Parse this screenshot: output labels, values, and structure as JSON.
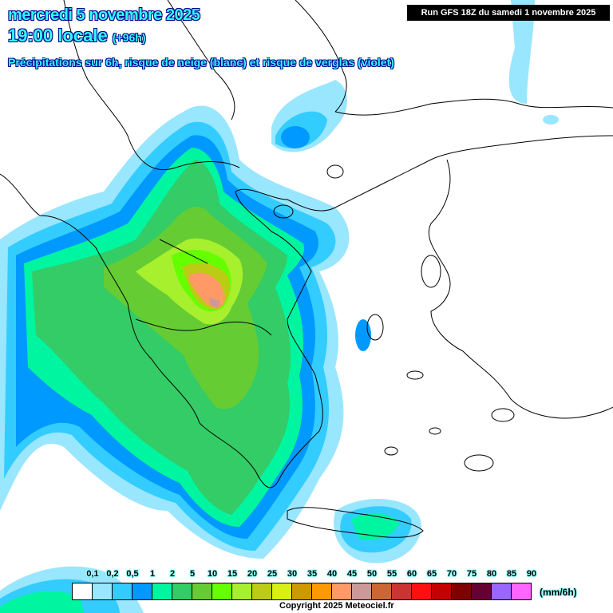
{
  "header": {
    "date": "mercredi 5 novembre 2025",
    "time": "19:00 locale",
    "lead": "(+96h)",
    "subtitle": "Précipitations sur 6h, risque de neige (blanc) et risque de verglas (violet)",
    "run": "Run GFS 18Z du samedi 1 novembre 2025"
  },
  "legend": {
    "unit": "(mm/6h)",
    "labels": [
      "0,1",
      "0,2",
      "0,5",
      "1",
      "2",
      "5",
      "10",
      "15",
      "20",
      "25",
      "30",
      "35",
      "40",
      "45",
      "50",
      "55",
      "60",
      "65",
      "70",
      "75",
      "80",
      "85",
      "90"
    ],
    "colors": [
      "#ffffff",
      "#99e6ff",
      "#33ccff",
      "#0099ff",
      "#00f5a0",
      "#33cc66",
      "#66cc33",
      "#66ff00",
      "#a6f02e",
      "#bccc14",
      "#d9f014",
      "#cc9900",
      "#ff9900",
      "#ff9966",
      "#cc9999",
      "#cc6633",
      "#cc3333",
      "#ff0f0f",
      "#c40000",
      "#800000",
      "#660033",
      "#9966ff",
      "#ff66ff"
    ]
  },
  "copyright": "Copyright 2025 Meteociel.fr"
}
